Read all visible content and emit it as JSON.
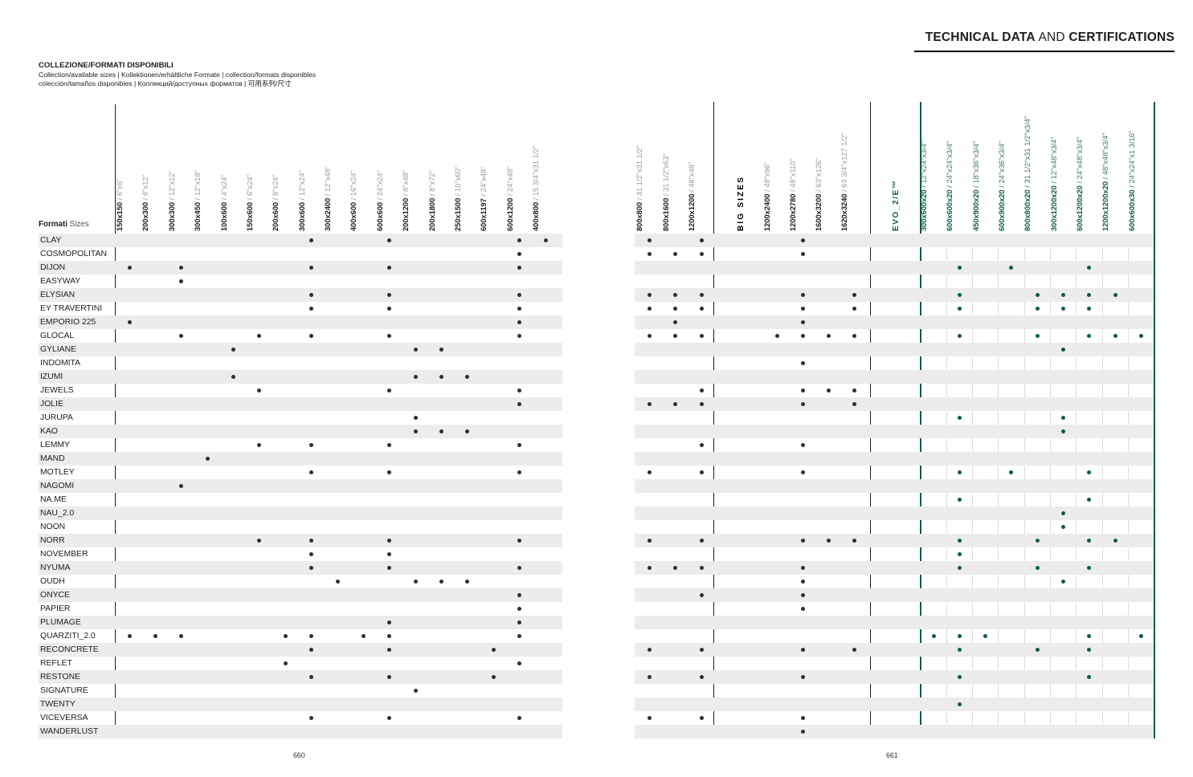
{
  "page": {
    "title_right": {
      "bold1": "TECHNICAL DATA",
      "mid": " AND ",
      "bold2": "CERTIFICATIONS"
    },
    "header": {
      "title": "COLLEZIONE/FORMATI DISPONIBILI",
      "subtitle_line1": "Collection/available sizes | Kollektionen/erhältliche Formate | collection/formats disponibles",
      "subtitle_line2": "colección/tamaños disponibles | Коллекций/доступных форматов | 可用系列/尺寸"
    },
    "page_number_left": "660",
    "page_number_right": "661"
  },
  "colors": {
    "accent_green": "#0E5C43",
    "dot_black": "#2F2F2F",
    "stripe_gray": "#ECECEC"
  },
  "table": {
    "row_header": {
      "bold": "Formati",
      "regular": "Sizes"
    },
    "group_labels": {
      "big": "BIG SIZES",
      "evo": "EVO_2/E™"
    },
    "columns": {
      "g1": [
        {
          "mm": "150x150",
          "in": "6\"x6\""
        },
        {
          "mm": "200x300",
          "in": "8\"x12\""
        },
        {
          "mm": "300x300",
          "in": "12\"x12\""
        },
        {
          "mm": "300x450",
          "in": "12\"x18\""
        },
        {
          "mm": "100x600",
          "in": "4\"x24\""
        },
        {
          "mm": "150x600",
          "in": "6\"x24\""
        },
        {
          "mm": "200x600",
          "in": "8\"x24\""
        },
        {
          "mm": "300x600",
          "in": "12\"x24\""
        },
        {
          "mm": "300x2400",
          "in": "12\"x48\""
        },
        {
          "mm": "400x600",
          "in": "16\"x24\""
        },
        {
          "mm": "600x600",
          "in": "24\"x24\""
        },
        {
          "mm": "200x1200",
          "in": "8\"x48\""
        },
        {
          "mm": "200x1800",
          "in": "8\"x72\""
        },
        {
          "mm": "250x1500",
          "in": "10\"x60\""
        },
        {
          "mm": "600x1197",
          "in": "24\"x48\""
        },
        {
          "mm": "600x1200",
          "in": "24\"x48\""
        },
        {
          "mm": "400x800",
          "in": "15 3/4\"x31 1/2\""
        }
      ],
      "g2": [
        {
          "mm": "800x800",
          "in": "31 1/2\"x31 1/2\""
        },
        {
          "mm": "800x1600",
          "in": "31 1/2\"x63\""
        },
        {
          "mm": "1200x1200",
          "in": "48\"x48\""
        }
      ],
      "big": [
        {
          "mm": "1200x2400",
          "in": "48\"x96\""
        },
        {
          "mm": "1200x2780",
          "in": "48\"x110\""
        },
        {
          "mm": "1600x3200",
          "in": "63\"x126\""
        },
        {
          "mm": "1620x3240",
          "in": "63 3/4\"x127 1/2\""
        }
      ],
      "evo": [
        {
          "mm": "300x600x20",
          "in": "12\"x24\"x3/4\""
        },
        {
          "mm": "600x600x20",
          "in": "24\"x24\"x3/4\""
        },
        {
          "mm": "450x900x20",
          "in": "18\"x36\"x3/4\""
        },
        {
          "mm": "600x900x20",
          "in": "24\"x36\"x3/4\""
        },
        {
          "mm": "800x800x20",
          "in": "31 1/2\"x31 1/2\"x3/4\""
        },
        {
          "mm": "300x1200x20",
          "in": "12\"x48\"x3/4\""
        },
        {
          "mm": "600x1200x20",
          "in": "24\"x48\"x3/4\""
        },
        {
          "mm": "1200x1200x20",
          "in": "48\"x48\"x3/4\""
        },
        {
          "mm": "600x600x30",
          "in": "24\"x24\"x1 3/16\""
        }
      ]
    },
    "rows": [
      {
        "name": "CLAY",
        "g1": [
          7,
          10,
          15,
          16
        ],
        "g2": [
          0,
          2
        ],
        "big": [
          1
        ],
        "evo": []
      },
      {
        "name": "COSMOPOLITAN",
        "g1": [
          15
        ],
        "g2": [
          0,
          1,
          2
        ],
        "big": [
          1
        ],
        "evo": []
      },
      {
        "name": "DIJON",
        "g1": [
          0,
          2,
          7,
          10,
          15
        ],
        "g2": [],
        "big": [],
        "evo": [
          1,
          3,
          6
        ]
      },
      {
        "name": "EASYWAY",
        "g1": [
          2
        ],
        "g2": [],
        "big": [],
        "evo": []
      },
      {
        "name": "ELYSIAN",
        "g1": [
          7,
          10,
          15
        ],
        "g2": [
          0,
          1,
          2
        ],
        "big": [
          1,
          3
        ],
        "evo": [
          1,
          4,
          5,
          6,
          7
        ]
      },
      {
        "name": "EY TRAVERTINI",
        "g1": [
          7,
          10,
          15
        ],
        "g2": [
          0,
          1,
          2
        ],
        "big": [
          1,
          3
        ],
        "evo": [
          1,
          4,
          5,
          6
        ]
      },
      {
        "name": "EMPORIO 225",
        "g1": [
          0,
          15
        ],
        "g2": [
          1
        ],
        "big": [
          1
        ],
        "evo": []
      },
      {
        "name": "GLOCAL",
        "g1": [
          2,
          5,
          7,
          10,
          15
        ],
        "g2": [
          0,
          1,
          2
        ],
        "big": [
          0,
          1,
          2,
          3
        ],
        "evo": [
          1,
          4,
          6,
          7,
          8
        ]
      },
      {
        "name": "GYLIANE",
        "g1": [
          4,
          11,
          12
        ],
        "g2": [],
        "big": [],
        "evo": [
          5
        ]
      },
      {
        "name": "INDOMITA",
        "g1": [],
        "g2": [],
        "big": [
          1
        ],
        "evo": []
      },
      {
        "name": "IZUMI",
        "g1": [
          4,
          11,
          12,
          13
        ],
        "g2": [],
        "big": [],
        "evo": []
      },
      {
        "name": "JEWELS",
        "g1": [
          5,
          10,
          15
        ],
        "g2": [
          2
        ],
        "big": [
          1,
          2,
          3
        ],
        "evo": []
      },
      {
        "name": "JOLIE",
        "g1": [
          15
        ],
        "g2": [
          0,
          1,
          2
        ],
        "big": [
          1,
          3
        ],
        "evo": []
      },
      {
        "name": "JURUPA",
        "g1": [
          11
        ],
        "g2": [],
        "big": [],
        "evo": [
          1,
          5
        ]
      },
      {
        "name": "KAO",
        "g1": [
          11,
          12,
          13
        ],
        "g2": [],
        "big": [],
        "evo": [
          5
        ]
      },
      {
        "name": "LEMMY",
        "g1": [
          5,
          7,
          10,
          15
        ],
        "g2": [
          2
        ],
        "big": [
          1
        ],
        "evo": []
      },
      {
        "name": "MAND",
        "g1": [
          3
        ],
        "g2": [],
        "big": [],
        "evo": []
      },
      {
        "name": "MOTLEY",
        "g1": [
          7,
          10,
          15
        ],
        "g2": [
          0,
          2
        ],
        "big": [
          1
        ],
        "evo": [
          1,
          3,
          6
        ]
      },
      {
        "name": "NAGOMI",
        "g1": [
          2
        ],
        "g2": [],
        "big": [],
        "evo": []
      },
      {
        "name": "NA.ME",
        "g1": [],
        "g2": [],
        "big": [],
        "evo": [
          1,
          6
        ]
      },
      {
        "name": "NAU_2.0",
        "g1": [],
        "g2": [],
        "big": [],
        "evo": [
          5
        ]
      },
      {
        "name": "NOON",
        "g1": [],
        "g2": [],
        "big": [],
        "evo": [
          5
        ]
      },
      {
        "name": "NORR",
        "g1": [
          5,
          7,
          10,
          15
        ],
        "g2": [
          0,
          2
        ],
        "big": [
          1,
          2,
          3
        ],
        "evo": [
          1,
          4,
          6,
          7
        ]
      },
      {
        "name": "NOVEMBER",
        "g1": [
          7,
          10
        ],
        "g2": [],
        "big": [],
        "evo": [
          1
        ]
      },
      {
        "name": "NYUMA",
        "g1": [
          7,
          10,
          15
        ],
        "g2": [
          0,
          1,
          2
        ],
        "big": [
          1
        ],
        "evo": [
          1,
          4,
          6
        ]
      },
      {
        "name": "OUDH",
        "g1": [
          8,
          11,
          12,
          13
        ],
        "g2": [],
        "big": [
          1
        ],
        "evo": [
          5
        ]
      },
      {
        "name": "ONYCE",
        "g1": [
          15
        ],
        "g2": [
          2
        ],
        "big": [
          1
        ],
        "evo": []
      },
      {
        "name": "PAPIER",
        "g1": [
          15
        ],
        "g2": [],
        "big": [
          1
        ],
        "evo": []
      },
      {
        "name": "PLUMAGE",
        "g1": [
          10,
          15
        ],
        "g2": [],
        "big": [],
        "evo": []
      },
      {
        "name": "QUARZITI_2.0",
        "g1": [
          0,
          1,
          2,
          6,
          7,
          9,
          10,
          15
        ],
        "g2": [],
        "big": [],
        "evo": [
          0,
          1,
          2,
          6,
          8
        ]
      },
      {
        "name": "RECONCRETE",
        "g1": [
          7,
          10,
          14
        ],
        "g2": [
          0,
          2
        ],
        "big": [
          1,
          3
        ],
        "evo": [
          1,
          4,
          6
        ]
      },
      {
        "name": "REFLET",
        "g1": [
          6,
          15
        ],
        "g2": [],
        "big": [],
        "evo": []
      },
      {
        "name": "RESTONE",
        "g1": [
          7,
          10,
          14
        ],
        "g2": [
          0,
          2
        ],
        "big": [
          1
        ],
        "evo": [
          1,
          6
        ]
      },
      {
        "name": "SIGNATURE",
        "g1": [
          11
        ],
        "g2": [],
        "big": [],
        "evo": []
      },
      {
        "name": "TWENTY",
        "g1": [],
        "g2": [],
        "big": [],
        "evo": [
          1
        ]
      },
      {
        "name": "VICEVERSA",
        "g1": [
          7,
          10,
          15
        ],
        "g2": [
          0,
          2
        ],
        "big": [
          1
        ],
        "evo": []
      },
      {
        "name": "WANDERLUST",
        "g1": [],
        "g2": [],
        "big": [
          1
        ],
        "evo": []
      }
    ]
  }
}
